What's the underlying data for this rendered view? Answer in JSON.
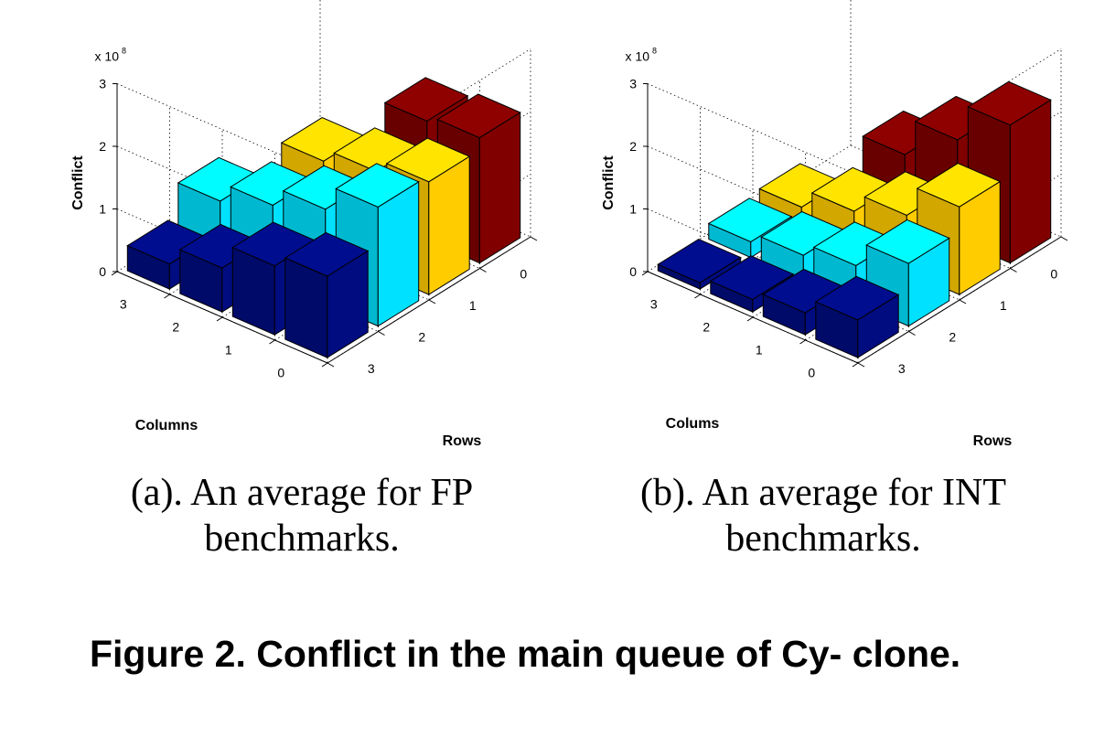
{
  "chart_data": [
    {
      "type": "bar3d",
      "zlabel": "Conflict",
      "xlabel": "Columns",
      "ylabel": "Rows",
      "z_multiplier": "x 10",
      "z_exponent": "8",
      "zlim": [
        0,
        3
      ],
      "z_ticks": [
        "0",
        "1",
        "2",
        "3"
      ],
      "column_ticks": [
        "0",
        "1",
        "2",
        "3"
      ],
      "row_ticks": [
        "0",
        "1",
        "2",
        "3"
      ],
      "grid": true,
      "values_by_row": [
        [
          2.0,
          1.9,
          0,
          0
        ],
        [
          1.8,
          1.6,
          1.4,
          0
        ],
        [
          1.9,
          1.5,
          1.2,
          0.9
        ],
        [
          1.3,
          1.1,
          0.7,
          0.4
        ]
      ],
      "colors_by_row": [
        "#800000",
        "#ffcc00",
        "#00e1ff",
        "#000c80"
      ],
      "caption": "(a). An average for FP benchmarks."
    },
    {
      "type": "bar3d",
      "zlabel": "Conflict",
      "xlabel": "Colums",
      "ylabel": "Rows",
      "z_multiplier": "x 10",
      "z_exponent": "8",
      "zlim": [
        0,
        3
      ],
      "z_ticks": [
        "0",
        "1",
        "2",
        "3"
      ],
      "column_ticks": [
        "0",
        "1",
        "2",
        "3"
      ],
      "row_ticks": [
        "0",
        "1",
        "2",
        "3"
      ],
      "grid": true,
      "values_by_row": [
        [
          2.2,
          1.6,
          1.0,
          0
        ],
        [
          1.4,
          0.9,
          0.6,
          0.3
        ],
        [
          1.0,
          0.6,
          0.4,
          0.25
        ],
        [
          0.6,
          0.35,
          0.2,
          0.1
        ]
      ],
      "colors_by_row": [
        "#800000",
        "#ffcc00",
        "#00e1ff",
        "#000c80"
      ],
      "caption": "(b). An average for INT benchmarks."
    }
  ],
  "captions": {
    "a_line1": "(a). An average for FP",
    "a_line2": "benchmarks.",
    "b_line1": "(b). An average for INT",
    "b_line2": "benchmarks.",
    "figure": "Figure 2. Conflict in the main queue of Cy- clone."
  }
}
